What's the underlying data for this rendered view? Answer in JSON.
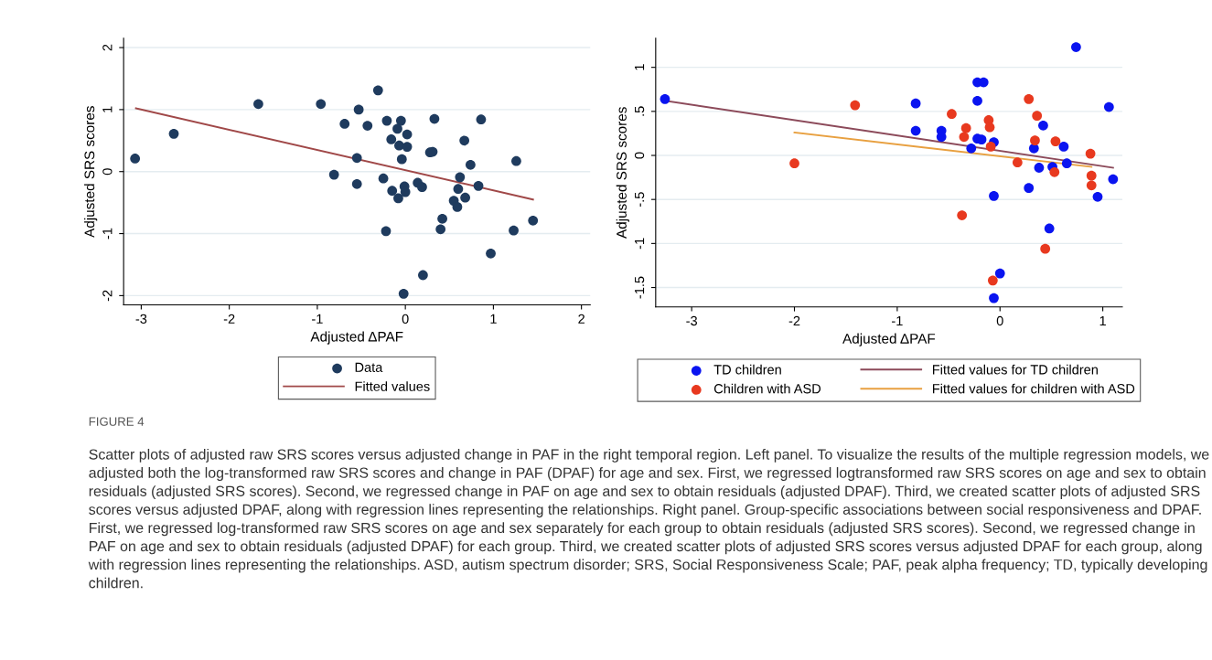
{
  "chart_data": [
    {
      "type": "scatter",
      "xlabel": "Adjusted ΔPAF",
      "ylabel": "Adjusted SRS scores",
      "xlim": [
        -3.2,
        2.1
      ],
      "ylim": [
        -2.15,
        2.15
      ],
      "xticks": [
        -3,
        -2,
        -1,
        0,
        1,
        2
      ],
      "yticks": [
        -2,
        -1,
        0,
        1,
        2
      ],
      "grid": "y",
      "legend": "bottom",
      "annotations": [
        "FIGURE 4",
        "Scatter plots of adjusted raw SRS scores versus adjusted change in PAF in the right temporal region. Left panel. To visualize the results of the multiple regression models, we adjusted both the log-transformed raw SRS scores and change in PAF (DPAF) for age and sex. First, we regressed logtransformed raw SRS scores on age and sex to obtain residuals (adjusted SRS scores). Second, we regressed change in PAF on age and sex to obtain residuals (adjusted DPAF). Third, we created scatter plots of adjusted SRS scores versus adjusted DPAF, along with regression lines representing the relationships. Right panel. Group-specific associations between social responsiveness and DPAF. First, we regressed log-transformed raw SRS scores on age and sex separately for each group to obtain residuals (adjusted SRS scores). Second, we regressed change in PAF on age and sex to obtain residuals (adjusted DPAF) for each group. Third, we created scatter plots of adjusted SRS scores versus adjusted DPAF for each group, along with regression lines representing the relationships. ASD, autism spectrum disorder; SRS, Social Responsiveness Scale; PAF, peak alpha frequency; TD, typically developing children."
      ],
      "series": [
        {
          "name": "Data",
          "type": "scatter",
          "marker": "circle",
          "color": "#1f3b5e",
          "x": [
            -3.07,
            -2.63,
            -1.67,
            -0.96,
            -0.31,
            -0.53,
            -0.69,
            -0.43,
            -0.21,
            -0.05,
            -0.09,
            0.02,
            -0.16,
            -0.07,
            0.02,
            -0.55,
            -0.04,
            0.33,
            0.28,
            0.31,
            0.86,
            0.67,
            0.74,
            1.26,
            -0.81,
            -0.55,
            -0.25,
            -0.15,
            -0.08,
            -0.01,
            0.0,
            0.14,
            0.19,
            0.62,
            0.6,
            0.68,
            0.55,
            0.59,
            0.83,
            0.42,
            0.4,
            -0.22,
            1.23,
            1.45,
            0.97,
            0.2,
            -0.02
          ],
          "values": [
            0.21,
            0.61,
            1.09,
            1.09,
            1.31,
            1.0,
            0.77,
            0.74,
            0.82,
            0.82,
            0.69,
            0.6,
            0.52,
            0.42,
            0.4,
            0.22,
            0.2,
            0.85,
            0.31,
            0.32,
            0.84,
            0.5,
            0.11,
            0.17,
            -0.05,
            -0.2,
            -0.11,
            -0.31,
            -0.43,
            -0.24,
            -0.33,
            -0.18,
            -0.25,
            -0.09,
            -0.28,
            -0.42,
            -0.47,
            -0.57,
            -0.23,
            -0.76,
            -0.93,
            -0.96,
            -0.95,
            -0.79,
            -1.32,
            -1.67,
            -1.97
          ]
        },
        {
          "name": "Fitted values",
          "type": "line",
          "color": "#a04848",
          "x": [
            -3.06,
            1.45
          ],
          "values": [
            1.02,
            -0.45
          ]
        }
      ]
    },
    {
      "type": "scatter",
      "xlabel": "Adjusted ΔPAF",
      "ylabel": "Adjusted SRS scores",
      "xlim": [
        -3.35,
        1.19
      ],
      "ylim": [
        -1.72,
        1.33
      ],
      "xticks": [
        -3,
        -2,
        -1,
        0,
        1
      ],
      "yticks": [
        {
          "value": -1.5,
          "label": "-1.5"
        },
        -1,
        {
          "value": -0.5,
          "label": "-.5"
        },
        0,
        {
          "value": 0.5,
          "label": ".5"
        },
        1
      ],
      "grid": "y",
      "legend": "bottom",
      "series": [
        {
          "name": "TD children",
          "type": "scatter",
          "marker": "circle",
          "color": "#0a14f0",
          "x": [
            -3.26,
            -0.82,
            -0.82,
            -0.57,
            -0.57,
            -0.22,
            -0.16,
            -0.22,
            -0.22,
            -0.18,
            -0.28,
            -0.06,
            -0.06,
            0.0,
            -0.06,
            0.74,
            0.42,
            0.33,
            0.38,
            0.51,
            0.62,
            0.65,
            0.28,
            0.48,
            1.06,
            1.1,
            0.95
          ],
          "values": [
            0.64,
            0.59,
            0.28,
            0.28,
            0.21,
            0.83,
            0.83,
            0.62,
            0.19,
            0.18,
            0.08,
            0.15,
            -0.46,
            -1.34,
            -1.62,
            1.23,
            0.34,
            0.08,
            -0.14,
            -0.13,
            0.1,
            -0.09,
            -0.37,
            -0.83,
            0.55,
            -0.27,
            -0.47
          ]
        },
        {
          "name": "Children with ASD",
          "type": "scatter",
          "marker": "circle",
          "color": "#e8391f",
          "x": [
            -2.0,
            -1.41,
            -0.47,
            -0.33,
            -0.35,
            -0.11,
            -0.1,
            -0.09,
            -0.37,
            -0.07,
            0.28,
            0.36,
            0.34,
            0.54,
            0.53,
            0.17,
            0.44,
            0.88,
            0.89,
            0.89
          ],
          "values": [
            -0.09,
            0.57,
            0.47,
            0.31,
            0.21,
            0.4,
            0.32,
            0.1,
            -0.68,
            -1.42,
            0.64,
            0.45,
            0.17,
            0.16,
            -0.19,
            -0.08,
            -1.06,
            0.02,
            -0.23,
            -0.34
          ]
        },
        {
          "name": "Fitted values for TD children",
          "type": "line",
          "color": "#8c4a5a",
          "x": [
            -3.26,
            1.1
          ],
          "values": [
            0.62,
            -0.14
          ]
        },
        {
          "name": "Fitted values for children with ASD",
          "type": "line",
          "color": "#e8a040",
          "x": [
            -2.0,
            0.89
          ],
          "values": [
            0.26,
            -0.13
          ]
        }
      ]
    }
  ]
}
